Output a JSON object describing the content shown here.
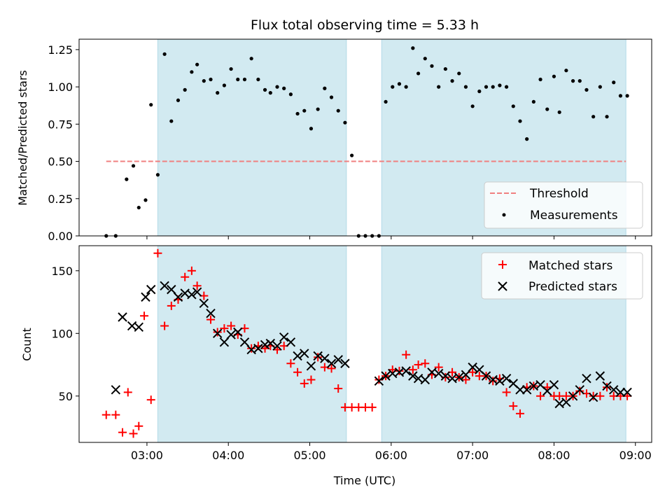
{
  "title": "Flux total observing time = 5.33 h",
  "colors": {
    "shade": "#add8e6",
    "threshold": "#f08080",
    "measurement": "#000000",
    "matched": "#ff0000",
    "predicted": "#000000"
  },
  "chart_data": [
    {
      "type": "scatter",
      "title": "Flux total observing time = 5.33 h",
      "xlabel": "",
      "ylabel": "Matched/Predicted stars",
      "xlim": [
        "02:10",
        "09:12"
      ],
      "ylim": [
        0,
        1.32
      ],
      "yticks": [
        "0.00",
        "0.25",
        "0.50",
        "0.75",
        "1.00",
        "1.25"
      ],
      "xticks": [
        "03:00",
        "04:00",
        "05:00",
        "06:00",
        "07:00",
        "08:00",
        "09:00"
      ],
      "shaded_intervals": [
        [
          "03:08",
          "05:27"
        ],
        [
          "05:53",
          "08:53"
        ]
      ],
      "legend": {
        "position": "lower-right",
        "entries": [
          "Threshold",
          "Measurements"
        ]
      },
      "threshold": {
        "name": "Threshold",
        "value": 0.5,
        "x_range": [
          "02:30",
          "08:53"
        ]
      },
      "series": [
        {
          "name": "Measurements",
          "x": [
            "02:30",
            "02:37",
            "02:45",
            "02:50",
            "02:54",
            "02:59",
            "03:03",
            "03:08",
            "03:13",
            "03:18",
            "03:23",
            "03:28",
            "03:33",
            "03:37",
            "03:42",
            "03:47",
            "03:52",
            "03:57",
            "04:02",
            "04:07",
            "04:12",
            "04:17",
            "04:22",
            "04:27",
            "04:31",
            "04:36",
            "04:41",
            "04:46",
            "04:51",
            "04:56",
            "05:01",
            "05:06",
            "05:11",
            "05:16",
            "05:21",
            "05:26",
            "05:31",
            "05:36",
            "05:41",
            "05:46",
            "05:51",
            "05:56",
            "06:01",
            "06:06",
            "06:11",
            "06:16",
            "06:20",
            "06:25",
            "06:30",
            "06:35",
            "06:40",
            "06:45",
            "06:50",
            "06:55",
            "07:00",
            "07:05",
            "07:10",
            "07:15",
            "07:20",
            "07:25",
            "07:30",
            "07:35",
            "07:40",
            "07:45",
            "07:50",
            "07:55",
            "08:00",
            "08:04",
            "08:09",
            "08:14",
            "08:19",
            "08:24",
            "08:29",
            "08:34",
            "08:39",
            "08:44",
            "08:49",
            "08:54"
          ],
          "y": [
            0.0,
            0.0,
            0.38,
            0.47,
            0.19,
            0.24,
            0.88,
            0.41,
            1.22,
            0.77,
            0.91,
            0.98,
            1.1,
            1.15,
            1.04,
            1.05,
            0.96,
            1.01,
            1.12,
            1.05,
            1.05,
            1.19,
            1.05,
            0.98,
            0.96,
            1.0,
            0.99,
            0.95,
            0.82,
            0.84,
            0.72,
            0.85,
            0.99,
            0.93,
            0.84,
            0.76,
            0.54,
            0.0,
            0.0,
            0.0,
            0.0,
            0.9,
            1.0,
            1.02,
            1.0,
            1.26,
            1.09,
            1.19,
            1.14,
            1.0,
            1.12,
            1.04,
            1.09,
            1.0,
            0.87,
            0.97,
            1.0,
            1.0,
            1.01,
            1.0,
            0.87,
            0.77,
            0.65,
            0.9,
            1.05,
            0.85,
            1.07,
            0.83,
            1.11,
            1.04,
            1.04,
            0.98,
            0.8,
            1.0,
            0.8,
            1.03,
            0.94,
            0.94
          ]
        }
      ]
    },
    {
      "type": "scatter",
      "xlabel": "Time (UTC)",
      "ylabel": "Count",
      "xlim": [
        "02:10",
        "09:12"
      ],
      "ylim": [
        13,
        170
      ],
      "yticks": [
        "50",
        "100",
        "150"
      ],
      "xticks": [
        "03:00",
        "04:00",
        "05:00",
        "06:00",
        "07:00",
        "08:00",
        "09:00"
      ],
      "shaded_intervals": [
        [
          "03:08",
          "05:27"
        ],
        [
          "05:53",
          "08:53"
        ]
      ],
      "legend": {
        "position": "upper-right",
        "entries": [
          "Matched stars",
          "Predicted stars"
        ]
      },
      "series": [
        {
          "name": "Matched stars",
          "marker": "plus",
          "x": [
            "02:30",
            "02:37",
            "02:42",
            "02:46",
            "02:50",
            "02:54",
            "02:58",
            "03:03",
            "03:08",
            "03:13",
            "03:18",
            "03:23",
            "03:28",
            "03:33",
            "03:37",
            "03:42",
            "03:47",
            "03:52",
            "03:57",
            "04:02",
            "04:07",
            "04:12",
            "04:17",
            "04:22",
            "04:27",
            "04:31",
            "04:36",
            "04:41",
            "04:46",
            "04:51",
            "04:56",
            "05:01",
            "05:06",
            "05:11",
            "05:16",
            "05:21",
            "05:26",
            "05:31",
            "05:36",
            "05:41",
            "05:46",
            "05:51",
            "05:56",
            "06:01",
            "06:06",
            "06:11",
            "06:16",
            "06:20",
            "06:25",
            "06:30",
            "06:35",
            "06:40",
            "06:45",
            "06:50",
            "06:55",
            "07:00",
            "07:05",
            "07:10",
            "07:15",
            "07:20",
            "07:25",
            "07:30",
            "07:35",
            "07:40",
            "07:45",
            "07:50",
            "07:55",
            "08:00",
            "08:04",
            "08:09",
            "08:14",
            "08:19",
            "08:24",
            "08:29",
            "08:34",
            "08:39",
            "08:44",
            "08:49",
            "08:54"
          ],
          "y": [
            35,
            35,
            21,
            53,
            20,
            26,
            114,
            47,
            164,
            106,
            122,
            127,
            145,
            150,
            138,
            130,
            111,
            101,
            104,
            106,
            99,
            104,
            88,
            90,
            88,
            90,
            87,
            90,
            76,
            69,
            60,
            63,
            81,
            73,
            72,
            56,
            41,
            41,
            41,
            41,
            41,
            63,
            66,
            71,
            70,
            83,
            71,
            75,
            76,
            67,
            73,
            65,
            69,
            65,
            63,
            69,
            66,
            66,
            62,
            64,
            53,
            42,
            36,
            57,
            58,
            50,
            57,
            50,
            50,
            50,
            50,
            54,
            52,
            50,
            50,
            57,
            50,
            50,
            50
          ]
        },
        {
          "name": "Predicted stars",
          "marker": "x",
          "x": [
            "02:37",
            "02:42",
            "02:49",
            "02:54",
            "02:59",
            "03:03",
            "03:13",
            "03:18",
            "03:23",
            "03:28",
            "03:33",
            "03:37",
            "03:42",
            "03:47",
            "03:52",
            "03:57",
            "04:02",
            "04:07",
            "04:12",
            "04:17",
            "04:22",
            "04:27",
            "04:31",
            "04:36",
            "04:41",
            "04:46",
            "04:51",
            "04:56",
            "05:01",
            "05:06",
            "05:11",
            "05:16",
            "05:21",
            "05:26",
            "05:51",
            "05:56",
            "06:01",
            "06:06",
            "06:11",
            "06:16",
            "06:20",
            "06:25",
            "06:30",
            "06:35",
            "06:40",
            "06:45",
            "06:50",
            "06:55",
            "07:00",
            "07:05",
            "07:10",
            "07:15",
            "07:20",
            "07:25",
            "07:30",
            "07:35",
            "07:40",
            "07:45",
            "07:50",
            "07:55",
            "08:00",
            "08:04",
            "08:09",
            "08:14",
            "08:19",
            "08:24",
            "08:29",
            "08:34",
            "08:39",
            "08:44",
            "08:49",
            "08:54"
          ],
          "y": [
            55,
            113,
            106,
            105,
            129,
            135,
            138,
            135,
            129,
            132,
            131,
            133,
            124,
            116,
            100,
            93,
            99,
            101,
            93,
            87,
            88,
            91,
            92,
            90,
            97,
            93,
            82,
            84,
            74,
            82,
            80,
            76,
            79,
            76,
            62,
            66,
            68,
            69,
            70,
            66,
            64,
            63,
            69,
            68,
            66,
            64,
            65,
            67,
            73,
            71,
            66,
            63,
            62,
            64,
            60,
            55,
            55,
            58,
            59,
            54,
            59,
            44,
            45,
            50,
            55,
            64,
            49,
            66,
            58,
            55,
            53,
            53
          ]
        }
      ]
    }
  ]
}
